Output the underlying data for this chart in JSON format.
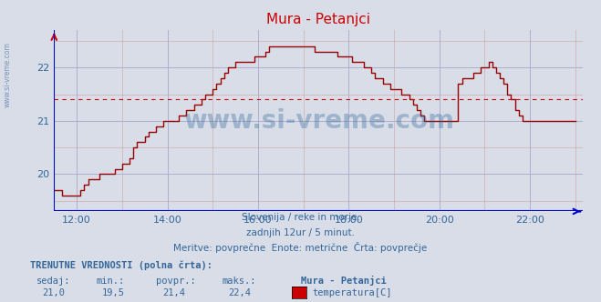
{
  "title": "Mura - Petanjci",
  "bg_color": "#d8dde8",
  "plot_bg_color": "#d8dde8",
  "line_color": "#990000",
  "avg_line_color": "#cc0000",
  "axis_color": "#0000cc",
  "grid_color_major": "#aaaacc",
  "grid_color_minor": "#cc9999",
  "text_color": "#336699",
  "avg_value": 21.4,
  "ylim": [
    19.3,
    22.7
  ],
  "yticks": [
    20,
    21,
    22
  ],
  "xlabel_texts": [
    "12:00",
    "14:00",
    "16:00",
    "18:00",
    "20:00",
    "22:00"
  ],
  "subtitle1": "Slovenija / reke in morje.",
  "subtitle2": "zadnjih 12ur / 5 minut.",
  "subtitle3": "Meritve: povprečne  Enote: metrične  Črta: povprečje",
  "footer_bold": "TRENUTNE VREDNOSTI (polna črta):",
  "footer_labels": [
    "sedaj:",
    "min.:",
    "povpr.:",
    "maks.:"
  ],
  "footer_values": [
    "21,0",
    "19,5",
    "21,4",
    "22,4"
  ],
  "legend_station": "Mura - Petanjci",
  "legend_label": "temperatura[C]",
  "legend_color": "#cc0000",
  "watermark_text": "www.si-vreme.com",
  "time_data": [
    11.5,
    11.583,
    11.667,
    11.75,
    11.833,
    11.917,
    12.0,
    12.083,
    12.167,
    12.25,
    12.333,
    12.417,
    12.5,
    12.583,
    12.667,
    12.75,
    12.833,
    12.917,
    13.0,
    13.083,
    13.167,
    13.25,
    13.333,
    13.417,
    13.5,
    13.583,
    13.667,
    13.75,
    13.833,
    13.917,
    14.0,
    14.083,
    14.167,
    14.25,
    14.333,
    14.417,
    14.5,
    14.583,
    14.667,
    14.75,
    14.833,
    14.917,
    15.0,
    15.083,
    15.167,
    15.25,
    15.333,
    15.417,
    15.5,
    15.583,
    15.667,
    15.75,
    15.833,
    15.917,
    16.0,
    16.083,
    16.167,
    16.25,
    16.333,
    16.417,
    16.5,
    16.583,
    16.667,
    16.75,
    16.833,
    16.917,
    17.0,
    17.083,
    17.167,
    17.25,
    17.333,
    17.417,
    17.5,
    17.583,
    17.667,
    17.75,
    17.833,
    17.917,
    18.0,
    18.083,
    18.167,
    18.25,
    18.333,
    18.417,
    18.5,
    18.583,
    18.667,
    18.75,
    18.833,
    18.917,
    19.0,
    19.083,
    19.167,
    19.25,
    19.333,
    19.417,
    19.5,
    19.583,
    19.667,
    19.75,
    19.833,
    19.917,
    20.0,
    20.083,
    20.167,
    20.25,
    20.333,
    20.417,
    20.5,
    20.583,
    20.667,
    20.75,
    20.833,
    20.917,
    21.0,
    21.083,
    21.167,
    21.25,
    21.333,
    21.417,
    21.5,
    21.583,
    21.667,
    21.75,
    21.833,
    21.917,
    22.0,
    22.083,
    22.167,
    22.25,
    22.333,
    22.417,
    22.5,
    22.583,
    22.667,
    22.75,
    22.833,
    22.917,
    23.0
  ],
  "temp_data": [
    19.7,
    19.7,
    19.6,
    19.6,
    19.6,
    19.6,
    19.6,
    19.7,
    19.8,
    19.9,
    19.9,
    19.9,
    20.0,
    20.0,
    20.0,
    20.0,
    20.1,
    20.1,
    20.2,
    20.2,
    20.3,
    20.5,
    20.6,
    20.6,
    20.7,
    20.8,
    20.8,
    20.9,
    20.9,
    21.0,
    21.0,
    21.0,
    21.0,
    21.1,
    21.1,
    21.2,
    21.2,
    21.3,
    21.3,
    21.4,
    21.5,
    21.5,
    21.6,
    21.7,
    21.8,
    21.9,
    22.0,
    22.0,
    22.1,
    22.1,
    22.1,
    22.1,
    22.1,
    22.2,
    22.2,
    22.2,
    22.3,
    22.4,
    22.4,
    22.4,
    22.4,
    22.4,
    22.4,
    22.4,
    22.4,
    22.4,
    22.4,
    22.4,
    22.4,
    22.3,
    22.3,
    22.3,
    22.3,
    22.3,
    22.3,
    22.2,
    22.2,
    22.2,
    22.2,
    22.1,
    22.1,
    22.1,
    22.0,
    22.0,
    21.9,
    21.8,
    21.8,
    21.7,
    21.7,
    21.6,
    21.6,
    21.6,
    21.5,
    21.5,
    21.4,
    21.3,
    21.2,
    21.1,
    21.0,
    21.0,
    21.0,
    21.0,
    21.0,
    21.0,
    21.0,
    21.0,
    21.0,
    21.7,
    21.8,
    21.8,
    21.8,
    21.9,
    21.9,
    22.0,
    22.0,
    22.1,
    22.0,
    21.9,
    21.8,
    21.7,
    21.5,
    21.4,
    21.2,
    21.1,
    21.0,
    21.0,
    21.0,
    21.0,
    21.0,
    21.0,
    21.0,
    21.0,
    21.0,
    21.0,
    21.0,
    21.0,
    21.0,
    21.0,
    21.0
  ]
}
